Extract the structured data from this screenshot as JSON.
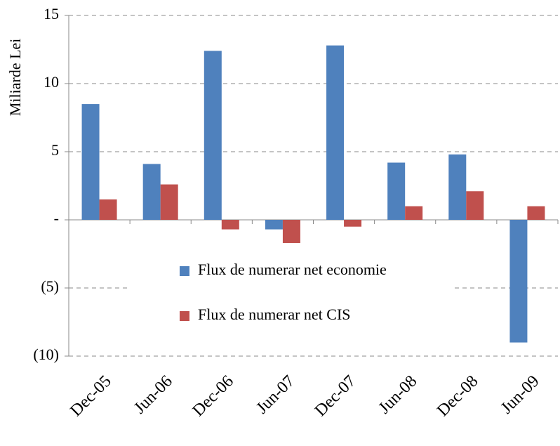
{
  "chart_data": {
    "type": "bar",
    "y_label": "Miliarde Lei",
    "categories": [
      "Dec-05",
      "Jun-06",
      "Dec-06",
      "Jun-07",
      "Dec-07",
      "Jun-08",
      "Dec-08",
      "Jun-09"
    ],
    "series": [
      {
        "name": "Flux de numerar net economie",
        "color": "#4f81bd",
        "values": [
          8.5,
          4.1,
          12.4,
          -0.7,
          12.8,
          4.2,
          4.8,
          -9.0
        ]
      },
      {
        "name": "Flux de numerar net CIS",
        "color": "#c0504d",
        "values": [
          1.5,
          2.6,
          -0.7,
          -1.7,
          -0.5,
          1.0,
          2.1,
          1.0
        ]
      }
    ],
    "ylim": [
      -10,
      15
    ],
    "yticks": [
      {
        "value": -10,
        "label": "(10)"
      },
      {
        "value": -5,
        "label": "(5)"
      },
      {
        "value": 0,
        "label": "-"
      },
      5,
      10,
      15
    ],
    "grid": true,
    "legend": "center"
  }
}
